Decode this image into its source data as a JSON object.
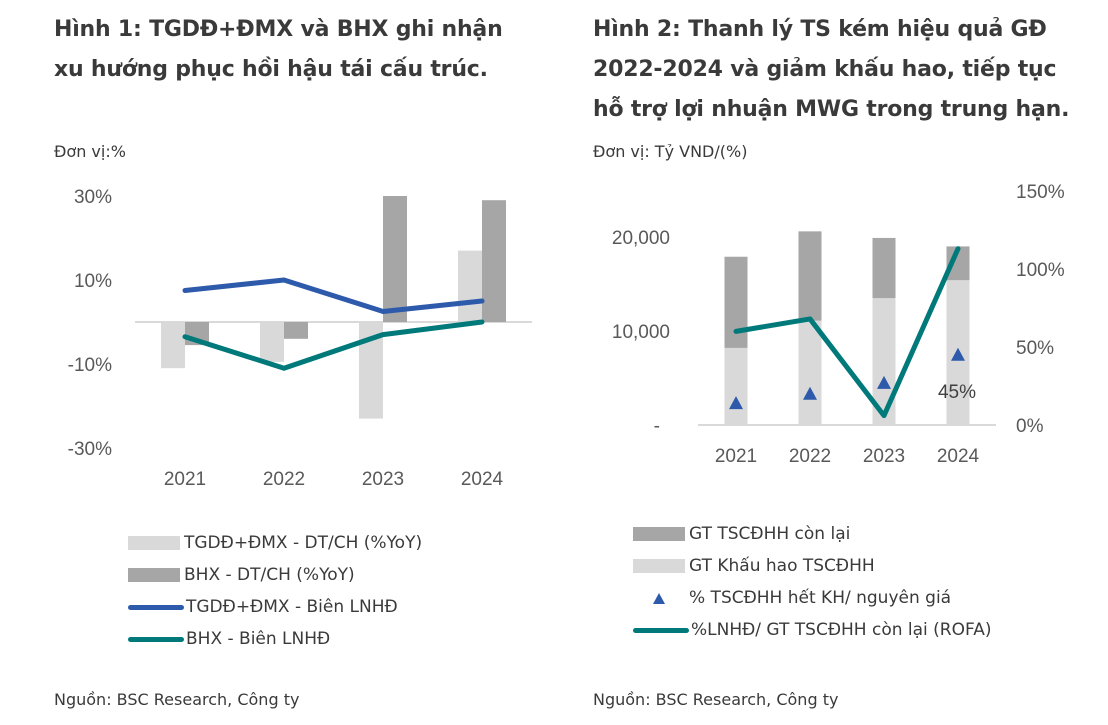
{
  "figure1": {
    "title_line1": "Hình 1: TGDĐ+ĐMX và BHX ghi nhận",
    "title_line2": "xu hướng phục hồi hậu tái cấu trúc.",
    "unit": "Đơn vị:%",
    "source": "Nguồn: BSC Research, Công ty"
  },
  "figure2": {
    "title_line1": "Hình 2:  Thanh lý TS kém hiệu quả GĐ",
    "title_line2": "2022-2024 và giảm khấu hao, tiếp tục",
    "title_line3": "hỗ trợ lợi nhuận MWG trong trung hạn.",
    "unit": "Đơn vị: Tỷ VND/(%)",
    "source": "Nguồn: BSC Research, Công ty"
  },
  "chart_data": [
    {
      "type": "bar",
      "title": "Hình 1: TGDĐ+ĐMX và BHX ghi nhận xu hướng phục hồi hậu tái cấu trúc.",
      "ylabel": "Đơn vị:%",
      "categories": [
        "2021",
        "2022",
        "2023",
        "2024"
      ],
      "ylim": [
        -30,
        30
      ],
      "yticks": [
        "30%",
        "10%",
        "-10%",
        "-30%"
      ],
      "ytick_values": [
        30,
        10,
        -10,
        -30
      ],
      "grid": false,
      "legend_position": "bottom",
      "series": [
        {
          "name": "TGDĐ+ĐMX - DT/CH (%YoY)",
          "kind": "bar",
          "color": "#d9d9d9",
          "values": [
            -11,
            -9.5,
            -23,
            17
          ]
        },
        {
          "name": "BHX - DT/CH (%YoY)",
          "kind": "bar",
          "color": "#a6a6a6",
          "values": [
            -5.5,
            -4,
            30,
            29
          ]
        },
        {
          "name": "TGDĐ+ĐMX - Biên LNHĐ",
          "kind": "line",
          "color": "#2e5aac",
          "values": [
            7.5,
            10,
            2.5,
            5
          ]
        },
        {
          "name": "BHX - Biên LNHĐ",
          "kind": "line",
          "color": "#00797a",
          "values": [
            -3.5,
            -11,
            -3,
            0
          ]
        }
      ]
    },
    {
      "type": "bar",
      "title": "Hình 2: Thanh lý TS kém hiệu quả GĐ 2022-2024 và giảm khấu hao, tiếp tục hỗ trợ lợi nhuận MWG trong trung hạn.",
      "ylabel": "Đơn vị: Tỷ VND/(%)",
      "categories": [
        "2021",
        "2022",
        "2023",
        "2024"
      ],
      "ylim_left": [
        0,
        25000
      ],
      "ylim_right": [
        0,
        150
      ],
      "yticks_left": [
        "-",
        "10,000",
        "20,000"
      ],
      "ytick_left_values": [
        0,
        10000,
        20000
      ],
      "yticks_right": [
        "0%",
        "50%",
        "100%",
        "150%"
      ],
      "ytick_right_values": [
        0,
        50,
        100,
        150
      ],
      "grid": false,
      "legend_position": "bottom",
      "annotations": [
        {
          "series": "% TSCĐHH hết KH/ nguyên giá",
          "category": "2024",
          "text": "45%"
        }
      ],
      "series": [
        {
          "name": "GT TSCĐHH còn lại",
          "kind": "stacked-bar",
          "axis": "left",
          "color": "#a6a6a6",
          "values": [
            9700,
            9500,
            6400,
            3600
          ]
        },
        {
          "name": "GT Khấu hao TSCĐHH",
          "kind": "stacked-bar",
          "axis": "left",
          "color": "#d9d9d9",
          "values": [
            8200,
            11100,
            13500,
            15400
          ]
        },
        {
          "name": "% TSCĐHH hết KH/ nguyên giá",
          "kind": "marker",
          "axis": "right",
          "color": "#2e5aac",
          "values": [
            14,
            20,
            27,
            45
          ]
        },
        {
          "name": "%LNHĐ/ GT TSCĐHH còn lại (ROFA)",
          "kind": "line",
          "axis": "right",
          "color": "#00797a",
          "values": [
            60,
            68,
            6,
            113
          ]
        }
      ]
    }
  ]
}
